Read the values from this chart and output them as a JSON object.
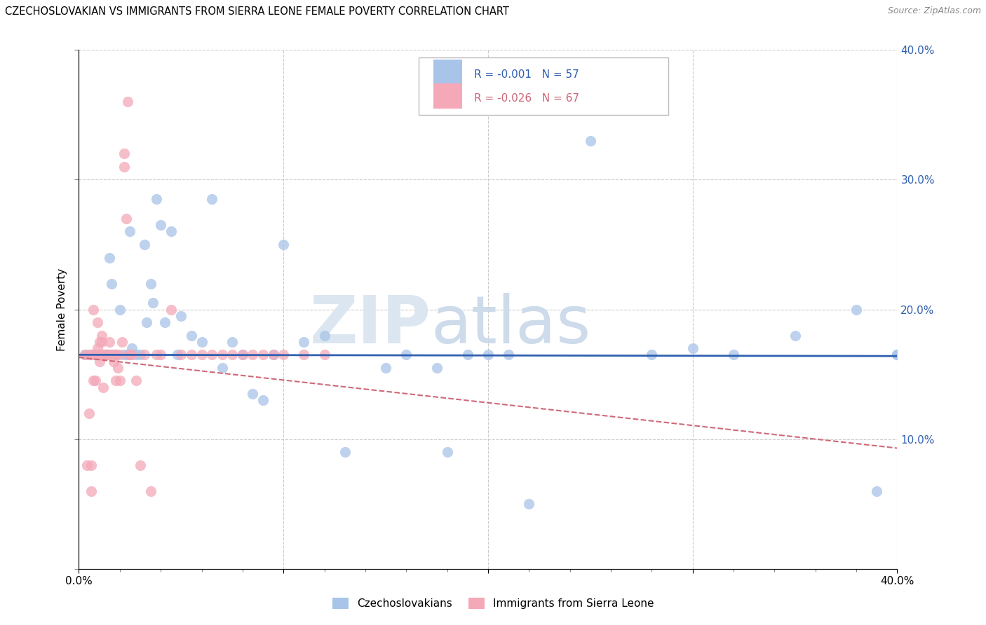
{
  "title": "CZECHOSLOVAKIAN VS IMMIGRANTS FROM SIERRA LEONE FEMALE POVERTY CORRELATION CHART",
  "source": "Source: ZipAtlas.com",
  "ylabel": "Female Poverty",
  "legend_blue_label": "Czechoslovakians",
  "legend_pink_label": "Immigrants from Sierra Leone",
  "legend_blue_R": "R = -0.001",
  "legend_blue_N": "N = 57",
  "legend_pink_R": "R = -0.026",
  "legend_pink_N": "N = 67",
  "blue_color": "#a8c4e8",
  "pink_color": "#f4a8b8",
  "blue_line_color": "#3060b0",
  "pink_line_color": "#d06878",
  "watermark_zip": "ZIP",
  "watermark_atlas": "atlas",
  "xlim": [
    0.0,
    0.4
  ],
  "ylim": [
    0.0,
    0.4
  ],
  "blue_scatter_x": [
    0.003,
    0.006,
    0.008,
    0.01,
    0.012,
    0.014,
    0.015,
    0.016,
    0.018,
    0.018,
    0.02,
    0.022,
    0.024,
    0.025,
    0.026,
    0.028,
    0.03,
    0.032,
    0.033,
    0.035,
    0.036,
    0.038,
    0.04,
    0.042,
    0.045,
    0.048,
    0.05,
    0.055,
    0.06,
    0.065,
    0.07,
    0.075,
    0.08,
    0.085,
    0.09,
    0.095,
    0.1,
    0.11,
    0.12,
    0.13,
    0.15,
    0.16,
    0.18,
    0.2,
    0.22,
    0.25,
    0.28,
    0.3,
    0.32,
    0.35,
    0.38,
    0.39,
    0.4,
    0.175,
    0.19,
    0.21,
    0.4
  ],
  "blue_scatter_y": [
    0.165,
    0.165,
    0.165,
    0.165,
    0.165,
    0.165,
    0.24,
    0.22,
    0.165,
    0.165,
    0.2,
    0.165,
    0.165,
    0.26,
    0.17,
    0.165,
    0.165,
    0.25,
    0.19,
    0.22,
    0.205,
    0.285,
    0.265,
    0.19,
    0.26,
    0.165,
    0.195,
    0.18,
    0.175,
    0.285,
    0.155,
    0.175,
    0.165,
    0.135,
    0.13,
    0.165,
    0.25,
    0.175,
    0.18,
    0.09,
    0.155,
    0.165,
    0.09,
    0.165,
    0.05,
    0.33,
    0.165,
    0.17,
    0.165,
    0.18,
    0.2,
    0.06,
    0.165,
    0.155,
    0.165,
    0.165,
    0.165
  ],
  "pink_scatter_x": [
    0.003,
    0.004,
    0.005,
    0.005,
    0.006,
    0.006,
    0.007,
    0.007,
    0.007,
    0.008,
    0.008,
    0.008,
    0.009,
    0.009,
    0.01,
    0.01,
    0.01,
    0.01,
    0.01,
    0.011,
    0.011,
    0.011,
    0.012,
    0.012,
    0.013,
    0.013,
    0.013,
    0.014,
    0.014,
    0.015,
    0.015,
    0.016,
    0.017,
    0.017,
    0.018,
    0.018,
    0.019,
    0.02,
    0.02,
    0.021,
    0.022,
    0.022,
    0.023,
    0.024,
    0.025,
    0.025,
    0.026,
    0.028,
    0.03,
    0.032,
    0.035,
    0.038,
    0.04,
    0.045,
    0.05,
    0.055,
    0.06,
    0.065,
    0.07,
    0.075,
    0.08,
    0.085,
    0.09,
    0.095,
    0.1,
    0.11,
    0.12
  ],
  "pink_scatter_y": [
    0.165,
    0.08,
    0.165,
    0.12,
    0.06,
    0.08,
    0.165,
    0.145,
    0.2,
    0.165,
    0.145,
    0.165,
    0.17,
    0.19,
    0.165,
    0.165,
    0.165,
    0.175,
    0.16,
    0.165,
    0.18,
    0.175,
    0.165,
    0.14,
    0.165,
    0.165,
    0.165,
    0.165,
    0.165,
    0.165,
    0.175,
    0.165,
    0.16,
    0.165,
    0.145,
    0.165,
    0.155,
    0.145,
    0.165,
    0.175,
    0.32,
    0.31,
    0.27,
    0.36,
    0.165,
    0.165,
    0.165,
    0.145,
    0.08,
    0.165,
    0.06,
    0.165,
    0.165,
    0.2,
    0.165,
    0.165,
    0.165,
    0.165,
    0.165,
    0.165,
    0.165,
    0.165,
    0.165,
    0.165,
    0.165,
    0.165,
    0.165
  ],
  "blue_trend_x": [
    0.0,
    0.4
  ],
  "blue_trend_y": [
    0.165,
    0.164
  ],
  "pink_trend_x": [
    0.0,
    0.4
  ],
  "pink_trend_y": [
    0.163,
    0.093
  ],
  "ytick_positions": [
    0.0,
    0.1,
    0.2,
    0.3,
    0.4
  ],
  "ytick_labels": [
    "",
    "10.0%",
    "20.0%",
    "30.0%",
    "40.0%"
  ],
  "xtick_positions": [
    0.0,
    0.1,
    0.2,
    0.3,
    0.4
  ],
  "xtick_minor_positions": [
    0.02,
    0.04,
    0.06,
    0.08,
    0.12,
    0.14,
    0.16,
    0.18,
    0.22,
    0.24,
    0.26,
    0.28,
    0.32,
    0.34,
    0.36,
    0.38
  ]
}
